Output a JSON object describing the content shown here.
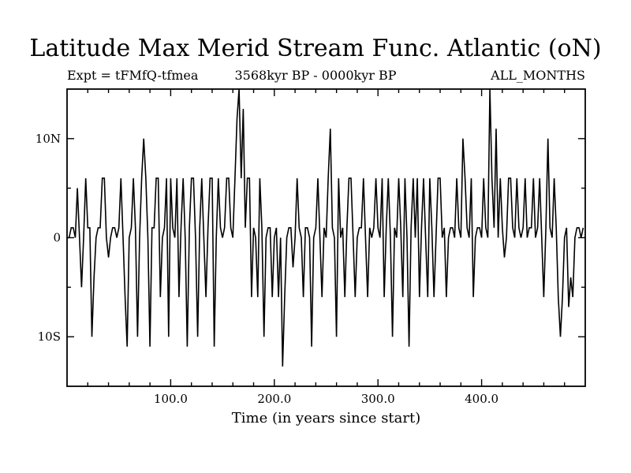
{
  "page": {
    "title": "Latitude Max Merid Stream Func. Atlantic (oN)",
    "subtitle_left": "Expt = tFMfQ-tfmea",
    "subtitle_center": "3568kyr BP - 0000kyr BP",
    "subtitle_right": "ALL_MONTHS"
  },
  "chart_data": {
    "type": "line",
    "title": "Latitude Max Merid Stream Func. Atlantic (oN)",
    "xlabel": "Time (in years since start)",
    "ylabel": "",
    "xlim": [
      0,
      500
    ],
    "ylim": [
      -15,
      15
    ],
    "grid": false,
    "legend": null,
    "line_color": "#000000",
    "x_ticks": [
      {
        "value": 100,
        "label": "100.0"
      },
      {
        "value": 200,
        "label": "200.0"
      },
      {
        "value": 300,
        "label": "300.0"
      },
      {
        "value": 400,
        "label": "400.0"
      }
    ],
    "y_ticks": [
      {
        "value": 10,
        "label": "10N"
      },
      {
        "value": 0,
        "label": "0"
      },
      {
        "value": -10,
        "label": "10S"
      }
    ],
    "x_minor_step": 20,
    "y_minor_ticks": [
      -5,
      5
    ],
    "x_start": 0,
    "x_step": 2,
    "values": [
      0,
      0,
      1,
      1,
      0,
      5,
      0,
      -5,
      0,
      6,
      1,
      1,
      -10,
      -4,
      0,
      1,
      1,
      6,
      6,
      0,
      -2,
      0,
      1,
      1,
      0,
      1,
      6,
      0,
      -6,
      -11,
      0,
      1,
      6,
      1,
      -10,
      0,
      6,
      10,
      6,
      0,
      -11,
      1,
      1,
      6,
      6,
      -6,
      0,
      1,
      6,
      -10,
      6,
      1,
      0,
      6,
      -6,
      1,
      6,
      0,
      -11,
      1,
      6,
      6,
      0,
      -10,
      1,
      6,
      0,
      -6,
      1,
      6,
      6,
      -11,
      0,
      6,
      1,
      0,
      1,
      6,
      6,
      1,
      0,
      6,
      12,
      15,
      6,
      13,
      1,
      6,
      6,
      -6,
      1,
      0,
      -6,
      6,
      1,
      -10,
      0,
      1,
      1,
      -6,
      0,
      1,
      -6,
      0,
      -13,
      -6,
      0,
      1,
      1,
      -3,
      0,
      6,
      1,
      0,
      -6,
      1,
      1,
      0,
      -11,
      0,
      1,
      6,
      0,
      -6,
      1,
      0,
      6,
      11,
      1,
      0,
      -10,
      6,
      0,
      1,
      -6,
      1,
      6,
      6,
      0,
      -6,
      0,
      1,
      1,
      6,
      0,
      -6,
      1,
      0,
      1,
      6,
      1,
      0,
      6,
      -6,
      1,
      6,
      0,
      -10,
      1,
      0,
      6,
      1,
      -6,
      6,
      0,
      -11,
      1,
      6,
      0,
      6,
      -6,
      1,
      6,
      0,
      -6,
      6,
      1,
      -6,
      0,
      6,
      6,
      0,
      1,
      -6,
      0,
      1,
      1,
      0,
      6,
      1,
      0,
      10,
      6,
      1,
      0,
      6,
      -6,
      0,
      1,
      1,
      0,
      6,
      1,
      0,
      15,
      6,
      1,
      11,
      0,
      6,
      1,
      -2,
      0,
      6,
      6,
      1,
      0,
      6,
      1,
      0,
      1,
      6,
      0,
      1,
      1,
      6,
      0,
      1,
      6,
      0,
      -6,
      1,
      10,
      1,
      0,
      6,
      1,
      -6,
      -10,
      -6,
      0,
      1,
      -7,
      -4,
      -6,
      0,
      1,
      1,
      0,
      1
    ]
  }
}
